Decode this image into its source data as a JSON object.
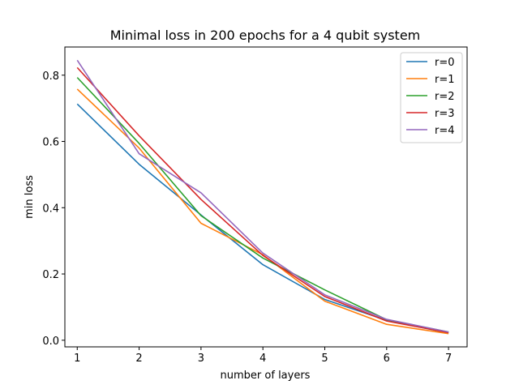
{
  "chart_data": {
    "type": "line",
    "title": "Minimal loss in 200 epochs for a 4 qubit system",
    "xlabel": "number of layers",
    "ylabel": "min loss",
    "x": [
      1,
      2,
      3,
      4,
      5,
      6,
      7
    ],
    "xlim": [
      0.8,
      7.3
    ],
    "ylim": [
      -0.02,
      0.885
    ],
    "xticks": [
      "1",
      "2",
      "3",
      "4",
      "5",
      "6",
      "7"
    ],
    "yticks": [
      "0.0",
      "0.2",
      "0.4",
      "0.6",
      "0.8"
    ],
    "legend_position": "top-right",
    "grid": false,
    "series": [
      {
        "name": "r=0",
        "color": "#1f77b4",
        "values": [
          0.713,
          0.531,
          0.378,
          0.228,
          0.123,
          0.06,
          0.022
        ]
      },
      {
        "name": "r=1",
        "color": "#ff7f0e",
        "values": [
          0.758,
          0.58,
          0.353,
          0.258,
          0.118,
          0.048,
          0.02
        ]
      },
      {
        "name": "r=2",
        "color": "#2ca02c",
        "values": [
          0.793,
          0.594,
          0.376,
          0.248,
          0.152,
          0.062,
          0.025
        ]
      },
      {
        "name": "r=3",
        "color": "#d62728",
        "values": [
          0.823,
          0.617,
          0.425,
          0.256,
          0.132,
          0.058,
          0.023
        ]
      },
      {
        "name": "r=4",
        "color": "#9467bd",
        "values": [
          0.845,
          0.563,
          0.445,
          0.263,
          0.137,
          0.063,
          0.025
        ]
      }
    ]
  }
}
